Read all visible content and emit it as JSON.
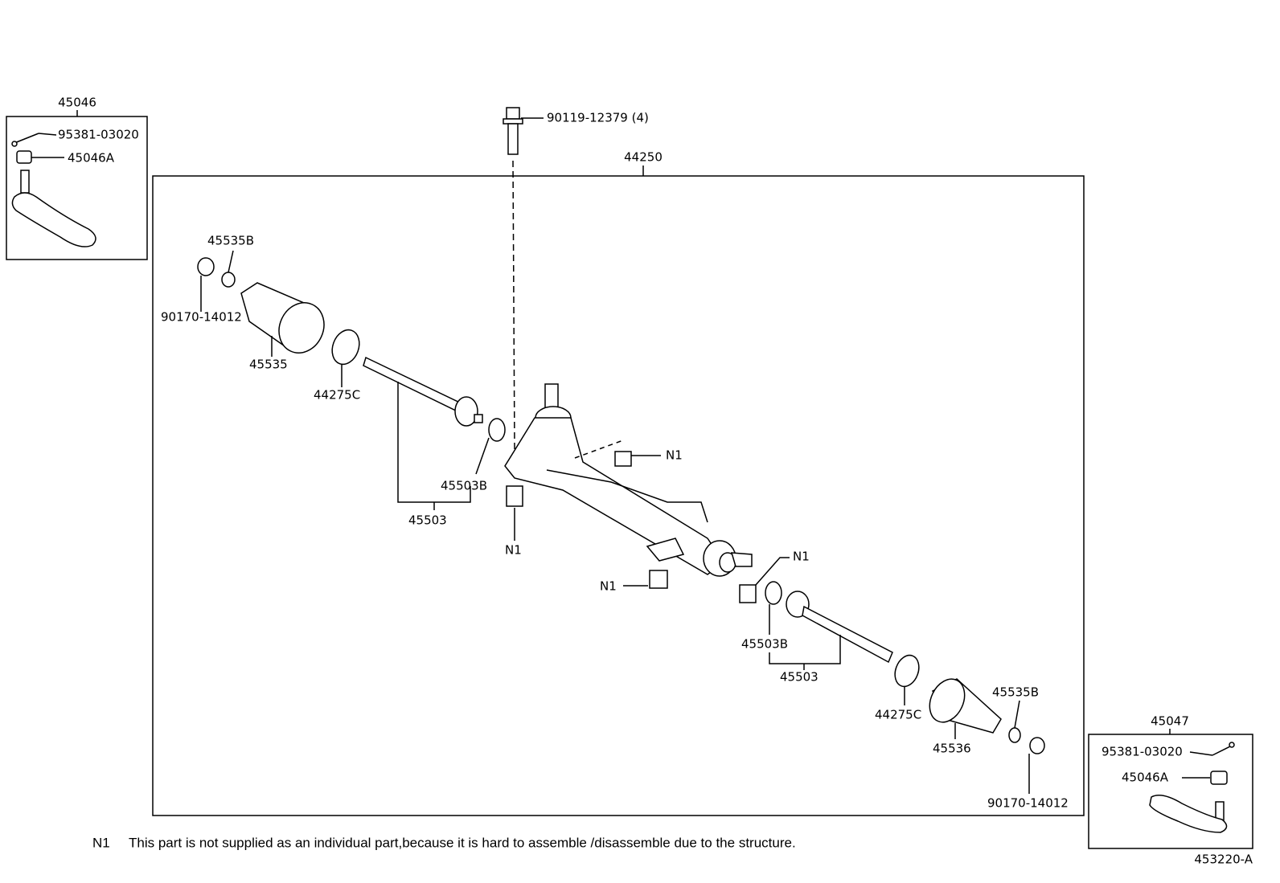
{
  "header": {
    "gear_assembly": "44250",
    "bolt": "90119-12379 (4)"
  },
  "left_tie_rod": {
    "part": "45046",
    "items": [
      "95381-03020",
      "45046A"
    ]
  },
  "right_tie_rod": {
    "part": "45047",
    "items": [
      "95381-03020",
      "45046A"
    ]
  },
  "callouts": [
    "45535B",
    "90170-14012",
    "45535",
    "44275C",
    "45503B",
    "45503",
    "N1",
    "N1",
    "N1",
    "N1",
    "45503B",
    "45503",
    "44275C",
    "45535B",
    "45536",
    "90170-14012"
  ],
  "footnote": {
    "marker": "N1",
    "text": "This part is not supplied as an individual part,because it is hard to assemble /disassemble due to the structure."
  },
  "figure_id": "453220-A"
}
